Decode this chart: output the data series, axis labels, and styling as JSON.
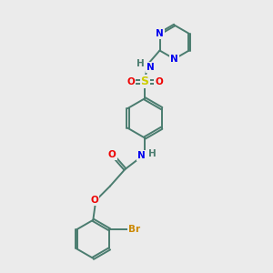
{
  "background_color": "#ebebeb",
  "bond_color": "#4a7c6f",
  "bond_width": 1.4,
  "atom_colors": {
    "N": "#0000ee",
    "O": "#ee0000",
    "S": "#cccc00",
    "Br": "#cc8800",
    "H": "#4a7c6f",
    "C": "#4a7c6f"
  },
  "font_size": 7.5
}
